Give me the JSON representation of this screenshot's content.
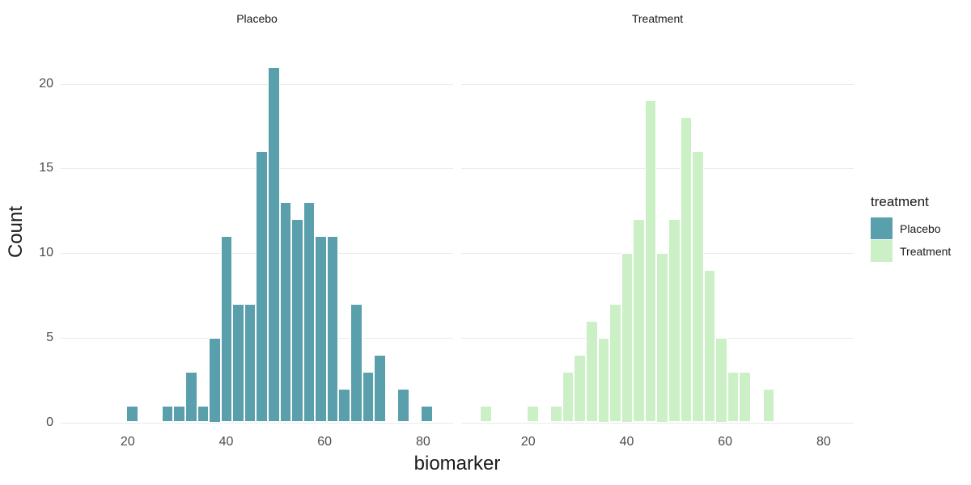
{
  "chart_data": {
    "type": "histogram",
    "faceted": true,
    "facet_variable": "treatment",
    "xlabel": "biomarker",
    "ylabel": "Count",
    "x_ticks": [
      20,
      40,
      60,
      80
    ],
    "y_ticks": [
      0,
      5,
      10,
      15,
      20
    ],
    "xlim": [
      6.4,
      86.1
    ],
    "ylim": [
      0,
      23.1
    ],
    "bin_start": 10.17,
    "bin_width": 2.394,
    "grid": "horizontal-major-only",
    "grid_color": "#EBEBEB",
    "background_color": "#FFFFFF",
    "axis_text_color": "#4D4D4D",
    "axis_title_color": "#1A1A1A",
    "bar_border_color": "#FFFFFF",
    "legend": {
      "position": "right",
      "title": "treatment",
      "entries": [
        {
          "label": "Placebo",
          "color": "#5AA0AC"
        },
        {
          "label": "Treatment",
          "color": "#CCF0C6"
        }
      ]
    },
    "panels": [
      {
        "title": "Placebo",
        "color": "#5AA0AC",
        "counts": [
          0,
          0,
          0,
          0,
          1,
          0,
          0,
          1,
          1,
          3,
          1,
          5,
          11,
          7,
          7,
          16,
          21,
          13,
          12,
          13,
          11,
          11,
          2,
          7,
          3,
          4,
          0,
          2,
          0,
          1
        ]
      },
      {
        "title": "Treatment",
        "color": "#CCF0C6",
        "counts": [
          1,
          0,
          0,
          0,
          1,
          0,
          1,
          3,
          4,
          6,
          5,
          7,
          10,
          12,
          19,
          10,
          12,
          18,
          16,
          9,
          5,
          3,
          3,
          0,
          2,
          0,
          0,
          0,
          0,
          0
        ]
      }
    ]
  }
}
